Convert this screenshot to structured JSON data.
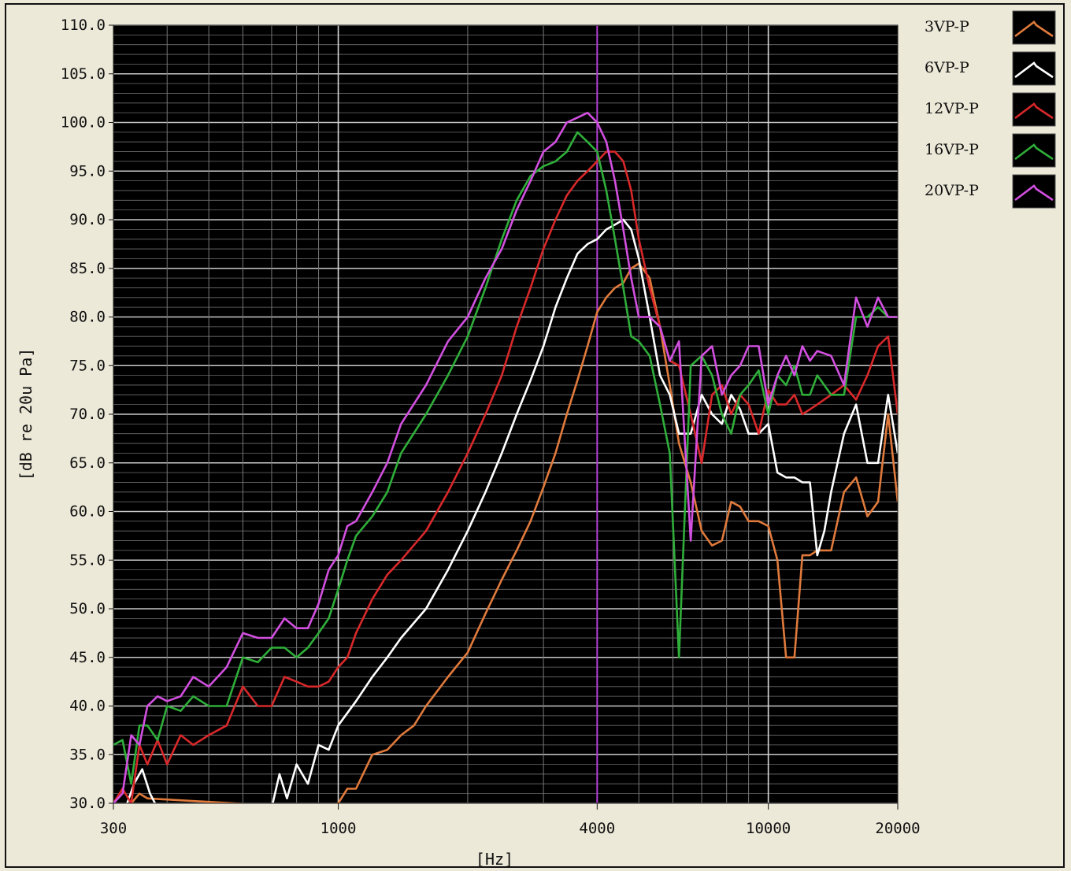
{
  "chart_data": {
    "type": "line",
    "title": "",
    "xlabel": "[Hz]",
    "ylabel": "[dB re 20u Pa]",
    "x_scale": "log",
    "xlim": [
      300,
      20000
    ],
    "ylim": [
      30,
      110
    ],
    "x_tick_labels": [
      "300",
      "1000",
      "4000",
      "10000",
      "20000"
    ],
    "x_tick_values": [
      300,
      1000,
      4000,
      10000,
      20000
    ],
    "y_tick_labels": [
      "110.0",
      "105.0",
      "100.0",
      "95.0",
      "90.0",
      "85.0",
      "80.0",
      "75.0",
      "70.0",
      "65.0",
      "60.0",
      "55.0",
      "50.0",
      "45.0",
      "40.0",
      "35.0",
      "30.0"
    ],
    "y_tick_values": [
      110,
      105,
      100,
      95,
      90,
      85,
      80,
      75,
      70,
      65,
      60,
      55,
      50,
      45,
      40,
      35,
      30
    ],
    "grid": true,
    "background": "#000000",
    "cursor_x": 4000,
    "cursor_color": "#b23fd0",
    "legend_position": "right",
    "series": [
      {
        "name": "3VP-P",
        "color": "#e07a3c",
        "x": [
          315,
          330,
          345,
          360,
          900,
          1000,
          1050,
          1100,
          1200,
          1300,
          1400,
          1500,
          1600,
          1800,
          2000,
          2200,
          2400,
          2600,
          2800,
          3000,
          3200,
          3400,
          3600,
          3800,
          4000,
          4200,
          4400,
          4600,
          4800,
          5000,
          5300,
          5600,
          5900,
          6200,
          6600,
          7000,
          7400,
          7800,
          8200,
          8600,
          9000,
          9500,
          10000,
          10500,
          11000,
          11500,
          12000,
          12500,
          13000,
          14000,
          15000,
          16000,
          17000,
          18000,
          19000,
          20000
        ],
        "y": [
          29.5,
          30,
          31,
          30.5,
          29.5,
          30,
          31.5,
          31.5,
          35,
          35.5,
          37,
          38,
          40,
          43,
          45.5,
          49.5,
          53,
          56,
          59,
          62.5,
          66,
          70,
          73.5,
          77,
          80.5,
          82,
          83,
          83.5,
          85,
          85.5,
          84,
          79,
          73,
          67,
          63,
          58,
          56.5,
          57,
          61,
          60.5,
          59,
          59,
          58.5,
          55,
          45,
          45,
          55.5,
          55.5,
          56,
          56,
          62,
          63.5,
          59.5,
          61,
          70,
          61
        ]
      },
      {
        "name": "6VP-P",
        "color": "#ffffff",
        "x": [
          320,
          335,
          350,
          365,
          380,
          700,
          730,
          760,
          800,
          850,
          900,
          950,
          1000,
          1100,
          1200,
          1300,
          1400,
          1600,
          1800,
          2000,
          2200,
          2400,
          2600,
          2800,
          3000,
          3200,
          3400,
          3600,
          3800,
          4000,
          4200,
          4400,
          4600,
          4800,
          5000,
          5300,
          5600,
          5900,
          6200,
          6600,
          7000,
          7400,
          7800,
          8200,
          8600,
          9000,
          9500,
          10000,
          10500,
          11000,
          11500,
          12000,
          12500,
          13000,
          13500,
          14000,
          15000,
          16000,
          17000,
          18000,
          19000,
          20000
        ],
        "y": [
          29.5,
          32,
          33.5,
          31,
          29.5,
          29.5,
          33,
          30.5,
          34,
          32,
          36,
          35.5,
          38,
          40.5,
          43,
          45,
          47,
          50,
          54,
          58,
          62,
          66,
          70,
          73.5,
          77,
          81,
          84,
          86.5,
          87.5,
          88,
          89,
          89.5,
          90,
          89,
          86,
          80,
          74,
          72,
          68,
          68,
          72,
          70,
          69,
          72,
          70.5,
          68,
          68,
          69,
          64,
          63.5,
          63.5,
          63,
          63,
          55.5,
          58,
          62,
          68,
          71,
          65,
          65,
          72,
          66
        ]
      },
      {
        "name": "12VP-P",
        "color": "#d8282a",
        "x": [
          300,
          315,
          330,
          345,
          360,
          380,
          400,
          430,
          460,
          500,
          550,
          600,
          650,
          700,
          750,
          800,
          850,
          900,
          950,
          1000,
          1050,
          1100,
          1200,
          1300,
          1400,
          1600,
          1800,
          2000,
          2200,
          2400,
          2600,
          2800,
          3000,
          3200,
          3400,
          3600,
          3800,
          4000,
          4200,
          4400,
          4600,
          4800,
          5000,
          5300,
          5600,
          5900,
          6200,
          6600,
          7000,
          7400,
          7800,
          8200,
          8600,
          9000,
          9500,
          10000,
          10500,
          11000,
          11500,
          12000,
          12500,
          13000,
          14000,
          15000,
          16000,
          17000,
          18000,
          19000,
          20000
        ],
        "y": [
          30,
          31.5,
          30,
          36,
          34,
          36.5,
          34,
          37,
          36,
          37,
          38,
          42,
          40,
          40,
          43,
          42.5,
          42,
          42,
          42.5,
          44,
          45,
          47.5,
          51,
          53.5,
          55,
          58,
          62,
          66,
          70,
          74,
          79,
          83,
          87,
          90,
          92.5,
          94,
          95,
          96,
          97,
          97,
          96,
          93,
          88,
          83,
          79,
          75.5,
          75,
          70,
          65,
          72,
          73,
          70,
          72,
          71,
          68,
          72.5,
          71,
          71,
          72,
          70,
          70.5,
          71,
          72,
          73,
          71.5,
          74,
          77,
          78,
          70
        ]
      },
      {
        "name": "16VP-P",
        "color": "#2fae3a",
        "x": [
          300,
          315,
          330,
          345,
          360,
          380,
          400,
          430,
          460,
          500,
          550,
          600,
          650,
          700,
          750,
          800,
          850,
          900,
          950,
          1000,
          1050,
          1100,
          1200,
          1300,
          1400,
          1600,
          1800,
          2000,
          2200,
          2400,
          2600,
          2800,
          3000,
          3200,
          3400,
          3600,
          3800,
          4000,
          4200,
          4400,
          4600,
          4800,
          5000,
          5300,
          5600,
          5900,
          6200,
          6600,
          7000,
          7400,
          7800,
          8200,
          8600,
          9000,
          9500,
          10000,
          10500,
          11000,
          11500,
          12000,
          12500,
          13000,
          14000,
          15000,
          16000,
          17000,
          18000,
          19000,
          20000
        ],
        "y": [
          36,
          36.5,
          32,
          38,
          38,
          36.5,
          40,
          39.5,
          41,
          40,
          40,
          45,
          44.5,
          46,
          46,
          45,
          46,
          47.5,
          49,
          52,
          55,
          57.5,
          59.5,
          62,
          66,
          70,
          74,
          78,
          83,
          88,
          92,
          94.5,
          95.5,
          96,
          97,
          99,
          98,
          97,
          93,
          88,
          83,
          78,
          77.5,
          76,
          71,
          66,
          45,
          75,
          76,
          74,
          70,
          68,
          72,
          73,
          74.5,
          70,
          74,
          73,
          75,
          72,
          72,
          74,
          72,
          72,
          80,
          80,
          81,
          80,
          80
        ]
      },
      {
        "name": "20VP-P",
        "color": "#d24fe0",
        "x": [
          300,
          315,
          330,
          345,
          360,
          380,
          400,
          430,
          460,
          500,
          550,
          600,
          650,
          700,
          750,
          800,
          850,
          900,
          950,
          1000,
          1050,
          1100,
          1200,
          1300,
          1400,
          1600,
          1800,
          2000,
          2200,
          2400,
          2600,
          2800,
          3000,
          3200,
          3400,
          3600,
          3800,
          4000,
          4200,
          4400,
          4600,
          4800,
          5000,
          5300,
          5600,
          5900,
          6200,
          6600,
          7000,
          7400,
          7800,
          8200,
          8600,
          9000,
          9500,
          10000,
          10500,
          11000,
          11500,
          12000,
          12500,
          13000,
          14000,
          15000,
          16000,
          17000,
          18000,
          19000,
          20000
        ],
        "y": [
          30,
          31,
          37,
          36,
          40,
          41,
          40.5,
          41,
          43,
          42,
          44,
          47.5,
          47,
          47,
          49,
          48,
          48,
          50.5,
          54,
          55.5,
          58.5,
          59,
          62,
          65,
          69,
          73,
          77.5,
          80,
          84,
          87,
          91,
          94,
          97,
          98,
          100,
          100.5,
          101,
          100,
          98,
          94,
          89,
          84,
          80,
          80,
          79,
          75.5,
          77.5,
          57,
          76,
          77,
          72,
          74,
          75,
          77,
          77,
          71,
          74,
          76,
          74,
          77,
          75.5,
          76.5,
          76,
          73,
          82,
          79,
          82,
          80,
          80
        ]
      }
    ]
  }
}
